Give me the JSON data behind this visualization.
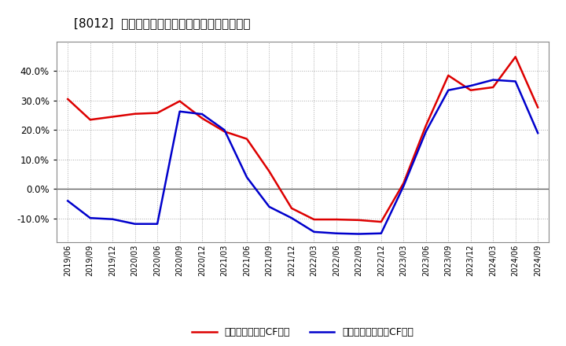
{
  "title": "[8012]  有利子負債キャッシュフロー比率の推移",
  "legend_red": "有利子負債営業CF比率",
  "legend_blue": "有利子負債フリーCF比率",
  "background_color": "#ffffff",
  "plot_bg_color": "#ffffff",
  "grid_color": "#aaaaaa",
  "x_labels": [
    "2019/06",
    "2019/09",
    "2019/12",
    "2020/03",
    "2020/06",
    "2020/09",
    "2020/12",
    "2021/03",
    "2021/06",
    "2021/09",
    "2021/12",
    "2022/03",
    "2022/06",
    "2022/09",
    "2022/12",
    "2023/03",
    "2023/06",
    "2023/09",
    "2023/12",
    "2024/03",
    "2024/06",
    "2024/09"
  ],
  "red_values": [
    0.305,
    0.235,
    0.245,
    0.255,
    0.258,
    0.298,
    0.24,
    0.195,
    0.17,
    0.06,
    -0.065,
    -0.103,
    -0.103,
    -0.105,
    -0.111,
    0.02,
    0.215,
    0.385,
    0.335,
    0.345,
    0.448,
    0.277
  ],
  "blue_values": [
    -0.04,
    -0.098,
    -0.102,
    -0.118,
    -0.118,
    0.263,
    0.254,
    0.2,
    0.04,
    -0.06,
    -0.098,
    -0.145,
    -0.15,
    -0.152,
    -0.15,
    0.01,
    0.195,
    0.335,
    0.35,
    0.37,
    0.365,
    0.19
  ],
  "ylim": [
    -0.18,
    0.5
  ],
  "yticks": [
    -0.1,
    0.0,
    0.1,
    0.2,
    0.3,
    0.4
  ],
  "red_color": "#dd0000",
  "blue_color": "#0000cc",
  "line_width": 1.8
}
